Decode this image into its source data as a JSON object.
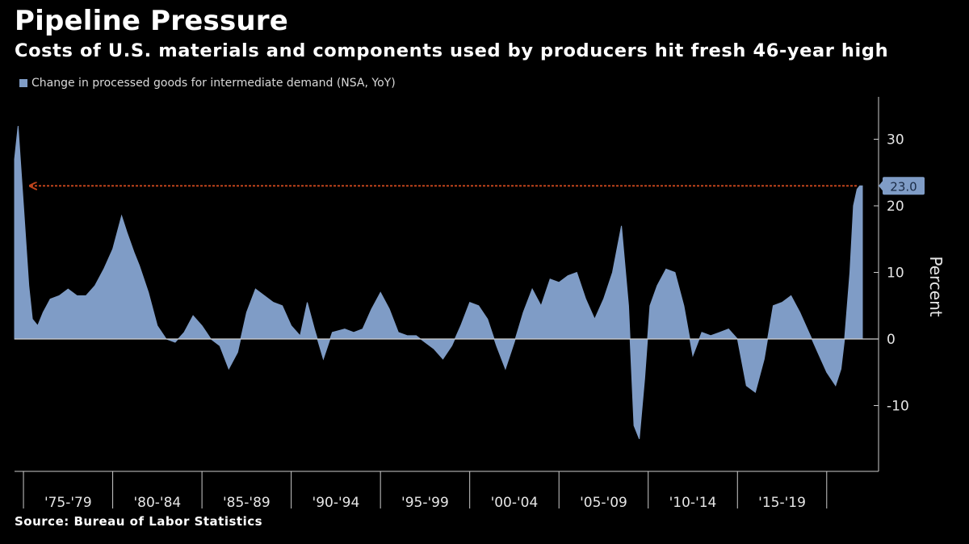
{
  "header": {
    "title": "Pipeline Pressure",
    "subtitle": "Costs of U.S. materials and components used by producers hit fresh 46-year high"
  },
  "footer": {
    "source": "Source: Bureau of Labor Statistics"
  },
  "colors": {
    "background": "#000000",
    "area": "#7f9cc6",
    "arrow": "#c0441c",
    "callout": "#7f9cc6",
    "axis": "#cccccc"
  },
  "chart_data": {
    "type": "area",
    "title": "Pipeline Pressure",
    "subtitle": "Costs of U.S. materials and components used by producers hit fresh 46-year high",
    "ylabel": "Percent",
    "xlabel": "",
    "ylim": [
      -20,
      37
    ],
    "yticks": [
      -10,
      0,
      10,
      20,
      30
    ],
    "ytick_labels": [
      "-10",
      "0",
      "10",
      "20",
      "30"
    ],
    "xlim": [
      1974.0,
      2021.5
    ],
    "xticks": [
      "'75-'79",
      "'80-'84",
      "'85-'89",
      "'90-'94",
      "'95-'99",
      "'00-'04",
      "'05-'09",
      "'10-'14",
      "'15-'19"
    ],
    "grid": false,
    "legend_position": "top-left",
    "series": [
      {
        "name": "Change in processed goods for intermediate demand (NSA, YoY)",
        "x": [
          1974.0,
          1974.2,
          1974.5,
          1974.8,
          1975.0,
          1975.3,
          1975.6,
          1976.0,
          1976.5,
          1977.0,
          1977.5,
          1978.0,
          1978.5,
          1979.0,
          1979.5,
          1980.0,
          1980.3,
          1980.7,
          1981.0,
          1981.5,
          1982.0,
          1982.5,
          1983.0,
          1983.5,
          1984.0,
          1984.5,
          1985.0,
          1985.5,
          1986.0,
          1986.5,
          1987.0,
          1987.5,
          1988.0,
          1988.5,
          1989.0,
          1989.5,
          1990.0,
          1990.4,
          1990.8,
          1991.3,
          1991.8,
          1992.5,
          1993.0,
          1993.5,
          1994.0,
          1994.5,
          1995.0,
          1995.5,
          1996.0,
          1996.5,
          1997.0,
          1997.5,
          1998.0,
          1998.5,
          1999.0,
          1999.5,
          2000.0,
          2000.5,
          2001.0,
          2001.5,
          2002.0,
          2002.5,
          2003.0,
          2003.5,
          2004.0,
          2004.5,
          2005.0,
          2005.5,
          2006.0,
          2006.5,
          2007.0,
          2007.5,
          2008.0,
          2008.4,
          2008.7,
          2009.0,
          2009.3,
          2009.6,
          2010.0,
          2010.5,
          2011.0,
          2011.5,
          2012.0,
          2012.5,
          2013.0,
          2013.5,
          2014.0,
          2014.5,
          2015.0,
          2015.5,
          2016.0,
          2016.5,
          2017.0,
          2017.5,
          2018.0,
          2018.5,
          2019.0,
          2019.5,
          2020.0,
          2020.3,
          2020.5,
          2020.8,
          2021.0,
          2021.2,
          2021.35,
          2021.5
        ],
        "values": [
          27,
          32,
          20,
          8,
          3,
          2,
          4,
          6,
          6.5,
          7.5,
          6.5,
          6.5,
          8,
          10.5,
          13.5,
          18.5,
          16,
          13,
          11,
          7,
          2,
          0,
          -0.5,
          1,
          3.5,
          2,
          0,
          -1,
          -4.5,
          -2,
          4,
          7.5,
          6.5,
          5.5,
          5,
          2,
          0.5,
          5.5,
          1.5,
          -3,
          1,
          1.5,
          1,
          1.5,
          4.5,
          7,
          4.5,
          1,
          0.5,
          0.5,
          -0.5,
          -1.5,
          -3,
          -1,
          2,
          5.5,
          5,
          3,
          -1,
          -4.5,
          -0.5,
          4,
          7.5,
          5,
          9,
          8.5,
          9.5,
          10,
          6,
          3,
          6,
          10,
          17,
          5,
          -13,
          -15,
          -6,
          5,
          8,
          10.5,
          10,
          5,
          -2.5,
          1,
          0.5,
          1,
          1.5,
          0,
          -7,
          -8,
          -3,
          5,
          5.5,
          6.5,
          4,
          1,
          -2,
          -5,
          -7,
          -4.5,
          0,
          10,
          20,
          22.5,
          23,
          23
        ]
      }
    ],
    "annotations": [
      {
        "type": "reference-arrow",
        "value": 23.0,
        "label": "23.0"
      }
    ]
  }
}
